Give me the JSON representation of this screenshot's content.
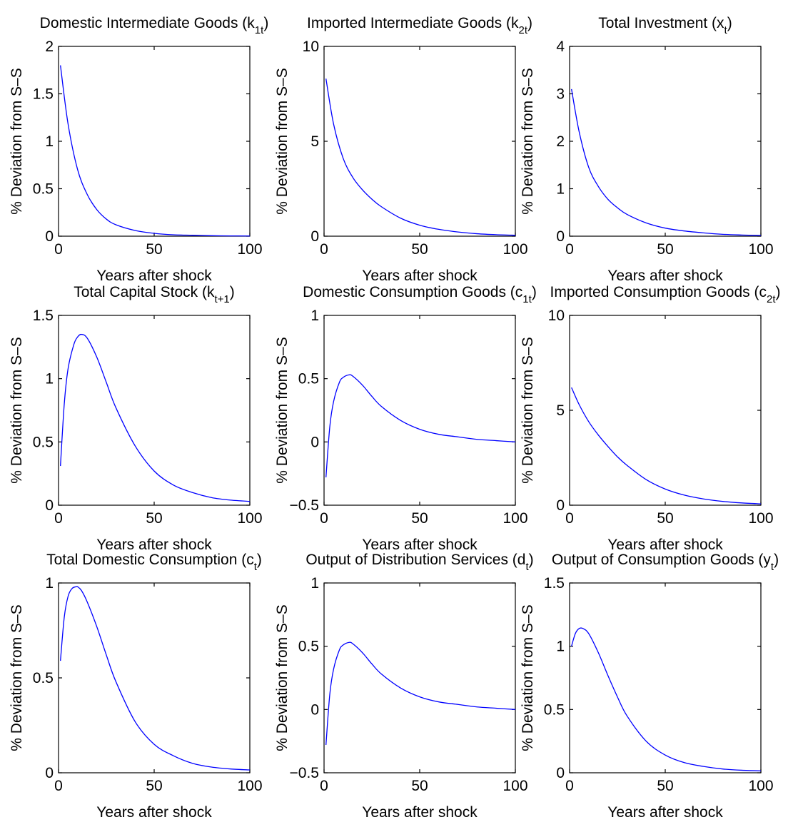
{
  "figure": {
    "line_color": "#0000ff"
  },
  "chart_data": [
    {
      "type": "line",
      "title": {
        "main": "Domestic Intermediate Goods (k",
        "sub": "1t",
        "tail": ")"
      },
      "xlabel": "Years after shock",
      "ylabel": "% Deviation from S–S",
      "xlim": [
        0,
        100
      ],
      "ylim": [
        0,
        2
      ],
      "xticks": [
        0,
        50,
        100
      ],
      "xtick_labels": [
        "0",
        "50",
        "100"
      ],
      "yticks": [
        0,
        0.5,
        1,
        1.5,
        2
      ],
      "ytick_labels": [
        "0",
        "0.5",
        "1",
        "1.5",
        "2"
      ],
      "grid": false,
      "series": [
        {
          "x": [
            1,
            5,
            10,
            15,
            20,
            25,
            30,
            40,
            50,
            60,
            70,
            80,
            90,
            100
          ],
          "y": [
            1.8,
            1.18,
            0.7,
            0.44,
            0.28,
            0.18,
            0.12,
            0.06,
            0.03,
            0.015,
            0.01,
            0.005,
            0.003,
            0.002
          ]
        }
      ]
    },
    {
      "type": "line",
      "title": {
        "main": "Imported Intermediate Goods (k",
        "sub": "2t",
        "tail": ")"
      },
      "xlabel": "Years after shock",
      "ylabel": "% Deviation from S–S",
      "xlim": [
        0,
        100
      ],
      "ylim": [
        0,
        10
      ],
      "xticks": [
        0,
        50,
        100
      ],
      "xtick_labels": [
        "0",
        "50",
        "100"
      ],
      "yticks": [
        0,
        5,
        10
      ],
      "ytick_labels": [
        "0",
        "5",
        "10"
      ],
      "grid": false,
      "series": [
        {
          "x": [
            1,
            5,
            10,
            15,
            20,
            25,
            30,
            40,
            50,
            60,
            70,
            80,
            90,
            100
          ],
          "y": [
            8.3,
            5.9,
            4.1,
            3.1,
            2.45,
            1.95,
            1.55,
            0.95,
            0.58,
            0.36,
            0.22,
            0.13,
            0.08,
            0.05
          ]
        }
      ]
    },
    {
      "type": "line",
      "title": {
        "main": "Total Investment (x",
        "sub": "t",
        "tail": ")"
      },
      "xlabel": "Years after shock",
      "ylabel": "% Deviation from S–S",
      "xlim": [
        0,
        100
      ],
      "ylim": [
        0,
        4
      ],
      "xticks": [
        0,
        50,
        100
      ],
      "xtick_labels": [
        "0",
        "50",
        "100"
      ],
      "yticks": [
        0,
        1,
        2,
        3,
        4
      ],
      "ytick_labels": [
        "0",
        "1",
        "2",
        "3",
        "4"
      ],
      "grid": false,
      "series": [
        {
          "x": [
            1,
            5,
            10,
            15,
            20,
            25,
            30,
            40,
            50,
            60,
            70,
            80,
            90,
            100
          ],
          "y": [
            3.1,
            2.2,
            1.45,
            1.05,
            0.78,
            0.6,
            0.46,
            0.28,
            0.17,
            0.11,
            0.07,
            0.04,
            0.025,
            0.015
          ]
        }
      ]
    },
    {
      "type": "line",
      "title": {
        "main": "Total Capital Stock (k",
        "sub": "t+1",
        "tail": ")"
      },
      "xlabel": "Years after shock",
      "ylabel": "% Deviation from S–S",
      "xlim": [
        0,
        100
      ],
      "ylim": [
        0,
        1.5
      ],
      "xticks": [
        0,
        50,
        100
      ],
      "xtick_labels": [
        "0",
        "50",
        "100"
      ],
      "yticks": [
        0,
        0.5,
        1,
        1.5
      ],
      "ytick_labels": [
        "0",
        "0.5",
        "1",
        "1.5"
      ],
      "grid": false,
      "series": [
        {
          "x": [
            1,
            3,
            5,
            8,
            10,
            12,
            15,
            20,
            25,
            30,
            40,
            50,
            60,
            70,
            80,
            90,
            100
          ],
          "y": [
            0.31,
            0.8,
            1.08,
            1.27,
            1.33,
            1.35,
            1.32,
            1.17,
            0.97,
            0.77,
            0.47,
            0.27,
            0.16,
            0.1,
            0.06,
            0.04,
            0.03
          ]
        }
      ]
    },
    {
      "type": "line",
      "title": {
        "main": "Domestic Consumption Goods (c",
        "sub": "1t",
        "tail": ")"
      },
      "xlabel": "Years after shock",
      "ylabel": "% Deviation from S–S",
      "xlim": [
        0,
        100
      ],
      "ylim": [
        -0.5,
        1
      ],
      "xticks": [
        0,
        50,
        100
      ],
      "xtick_labels": [
        "0",
        "50",
        "100"
      ],
      "yticks": [
        -0.5,
        0,
        0.5,
        1
      ],
      "ytick_labels": [
        "−0.5",
        "0",
        "0.5",
        "1"
      ],
      "grid": false,
      "series": [
        {
          "x": [
            1,
            3,
            5,
            8,
            10,
            13,
            15,
            20,
            25,
            30,
            40,
            50,
            60,
            70,
            80,
            90,
            100
          ],
          "y": [
            -0.28,
            0.12,
            0.32,
            0.47,
            0.51,
            0.53,
            0.52,
            0.45,
            0.36,
            0.28,
            0.17,
            0.1,
            0.06,
            0.04,
            0.02,
            0.01,
            0.0
          ]
        }
      ]
    },
    {
      "type": "line",
      "title": {
        "main": "Imported Consumption Goods (c",
        "sub": "2t",
        "tail": ")"
      },
      "xlabel": "Years after shock",
      "ylabel": "% Deviation from S–S",
      "xlim": [
        0,
        100
      ],
      "ylim": [
        0,
        10
      ],
      "xticks": [
        0,
        50,
        100
      ],
      "xtick_labels": [
        "0",
        "50",
        "100"
      ],
      "yticks": [
        0,
        5,
        10
      ],
      "ytick_labels": [
        "0",
        "5",
        "10"
      ],
      "grid": false,
      "series": [
        {
          "x": [
            1,
            5,
            10,
            15,
            20,
            25,
            30,
            40,
            50,
            60,
            70,
            80,
            90,
            100
          ],
          "y": [
            6.2,
            5.3,
            4.4,
            3.7,
            3.1,
            2.55,
            2.1,
            1.35,
            0.85,
            0.53,
            0.33,
            0.2,
            0.12,
            0.07
          ]
        }
      ]
    },
    {
      "type": "line",
      "title": {
        "main": "Total Domestic Consumption (c",
        "sub": "t",
        "tail": ")"
      },
      "xlabel": "Years after shock",
      "ylabel": "% Deviation from S–S",
      "xlim": [
        0,
        100
      ],
      "ylim": [
        0,
        1
      ],
      "xticks": [
        0,
        50,
        100
      ],
      "xtick_labels": [
        "0",
        "50",
        "100"
      ],
      "yticks": [
        0,
        0.5,
        1
      ],
      "ytick_labels": [
        "0",
        "0.5",
        "1"
      ],
      "grid": false,
      "series": [
        {
          "x": [
            1,
            3,
            5,
            7,
            9,
            10,
            12,
            15,
            20,
            25,
            30,
            40,
            50,
            60,
            70,
            80,
            90,
            100
          ],
          "y": [
            0.59,
            0.82,
            0.93,
            0.97,
            0.98,
            0.98,
            0.96,
            0.9,
            0.77,
            0.62,
            0.48,
            0.27,
            0.15,
            0.09,
            0.05,
            0.03,
            0.02,
            0.015
          ]
        }
      ]
    },
    {
      "type": "line",
      "title": {
        "main": "Output of Distribution Services (d",
        "sub": "t",
        "tail": ")"
      },
      "xlabel": "Years after shock",
      "ylabel": "% Deviation from S–S",
      "xlim": [
        0,
        100
      ],
      "ylim": [
        -0.5,
        1
      ],
      "xticks": [
        0,
        50,
        100
      ],
      "xtick_labels": [
        "0",
        "50",
        "100"
      ],
      "yticks": [
        -0.5,
        0,
        0.5,
        1
      ],
      "ytick_labels": [
        "−0.5",
        "0",
        "0.5",
        "1"
      ],
      "grid": false,
      "series": [
        {
          "x": [
            1,
            3,
            5,
            8,
            10,
            13,
            15,
            20,
            25,
            30,
            40,
            50,
            60,
            70,
            80,
            90,
            100
          ],
          "y": [
            -0.28,
            0.12,
            0.32,
            0.47,
            0.51,
            0.53,
            0.52,
            0.45,
            0.36,
            0.28,
            0.17,
            0.1,
            0.06,
            0.04,
            0.02,
            0.01,
            0.0
          ]
        }
      ]
    },
    {
      "type": "line",
      "title": {
        "main": "Output of Consumption Goods (y",
        "sub": "t",
        "tail": ")"
      },
      "xlabel": "Years after shock",
      "ylabel": "% Deviation from S–S",
      "xlim": [
        0,
        100
      ],
      "ylim": [
        0,
        1.5
      ],
      "xticks": [
        0,
        50,
        100
      ],
      "xtick_labels": [
        "0",
        "50",
        "100"
      ],
      "yticks": [
        0,
        0.5,
        1,
        1.5
      ],
      "ytick_labels": [
        "0",
        "0.5",
        "1",
        "1.5"
      ],
      "grid": false,
      "series": [
        {
          "x": [
            1,
            3,
            5,
            7,
            10,
            15,
            20,
            25,
            30,
            40,
            50,
            60,
            70,
            80,
            90,
            100
          ],
          "y": [
            1.0,
            1.1,
            1.14,
            1.14,
            1.1,
            0.95,
            0.77,
            0.6,
            0.45,
            0.25,
            0.14,
            0.08,
            0.05,
            0.03,
            0.02,
            0.015
          ]
        }
      ]
    }
  ]
}
